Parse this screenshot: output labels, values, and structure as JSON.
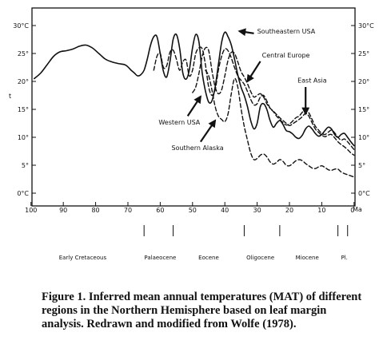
{
  "chart_data": {
    "type": "line",
    "xlim": [
      100,
      0
    ],
    "ylim": [
      0,
      30
    ],
    "x_ticks": [
      100,
      90,
      80,
      70,
      60,
      50,
      40,
      30,
      20,
      10,
      0
    ],
    "x_tick_labels": [
      "100",
      "90",
      "80",
      "70",
      "60",
      "50",
      "40",
      "30",
      "20",
      "10",
      "0"
    ],
    "x_unit": "Ma",
    "y_ticks": [
      0,
      5,
      10,
      15,
      20,
      25,
      30
    ],
    "y_tick_labels_left": [
      "0°C",
      "5°",
      "10°",
      "15°",
      "20°",
      "25°",
      "30°C"
    ],
    "y_tick_labels_right": [
      "0°C",
      "5°",
      "10°",
      "15°",
      "20°",
      "25°",
      "30°C"
    ],
    "ylabel": "t",
    "grid": false,
    "series": [
      {
        "name": "Southeastern USA",
        "style": "solid",
        "x": [
          99,
          97,
          95,
          93,
          91,
          89,
          87,
          85,
          83,
          81,
          79,
          77,
          75,
          73,
          71,
          70,
          69,
          68,
          67,
          66,
          65,
          64,
          63,
          62,
          61,
          60,
          59,
          58,
          57,
          56,
          55,
          54,
          53,
          52,
          51,
          50,
          49,
          48,
          47,
          46,
          45,
          44,
          43,
          42,
          41,
          40,
          39,
          38,
          37,
          36,
          35,
          34,
          33,
          32,
          31,
          30,
          29,
          28,
          27,
          26,
          25,
          24,
          23,
          22,
          21,
          20,
          19,
          18,
          17,
          16,
          15,
          14,
          13,
          12,
          11,
          10,
          9,
          8,
          7,
          6,
          5,
          4,
          3,
          2,
          1,
          0
        ],
        "y": [
          20.5,
          21.5,
          23,
          24.5,
          25.3,
          25.5,
          25.8,
          26.3,
          26.5,
          26,
          25,
          24,
          23.5,
          23.2,
          23,
          22.6,
          22,
          21.5,
          21,
          21.2,
          22,
          24,
          26.5,
          28,
          28,
          25,
          21.8,
          20.8,
          23.5,
          27.5,
          28.4,
          26,
          21.5,
          20.4,
          22,
          26,
          28.4,
          27,
          21.5,
          18.3,
          16.3,
          16.5,
          19,
          23,
          27,
          28.8,
          28,
          26.5,
          24,
          21.2,
          19,
          17.5,
          15.5,
          13,
          11.5,
          12.5,
          15.5,
          16,
          15,
          13,
          11.8,
          12.5,
          13,
          12.3,
          11.2,
          11,
          10.6,
          10,
          9.8,
          10.4,
          11.5,
          12,
          11.5,
          10.7,
          10.2,
          10.5,
          11.2,
          11.8,
          11.5,
          10.5,
          10,
          10.5,
          10.7,
          10,
          9.2,
          8.5
        ]
      },
      {
        "name": "Central Europe",
        "style": "dashed",
        "x": [
          62,
          61,
          60,
          59,
          58,
          57,
          56,
          55,
          54,
          53,
          52,
          51,
          50,
          49,
          48,
          47,
          46,
          45,
          44,
          43,
          42,
          41,
          40,
          39,
          38,
          37,
          36,
          35,
          34,
          33,
          32,
          31,
          30,
          29,
          28,
          27,
          26,
          25,
          24,
          23,
          22,
          21,
          20,
          19,
          18,
          17,
          16,
          15,
          14,
          13,
          12,
          11,
          10,
          9,
          8,
          7,
          6,
          5,
          4,
          3,
          2,
          1,
          0
        ],
        "y": [
          22,
          24.5,
          25,
          22.5,
          22.8,
          25.2,
          25.6,
          24,
          22,
          23.5,
          23.8,
          21,
          22,
          25,
          26,
          25.8,
          23,
          19,
          17.5,
          18.5,
          22,
          24.5,
          25.8,
          25.5,
          24.2,
          22.5,
          21,
          20.2,
          19.5,
          18.2,
          16.8,
          15.8,
          16,
          17.2,
          17.5,
          16.5,
          15.2,
          14.6,
          13.8,
          13.2,
          12.6,
          12.2,
          12.4,
          12.9,
          13.5,
          13.8,
          14.5,
          15,
          14.4,
          13.2,
          12,
          11.3,
          10.7,
          10.5,
          10.9,
          11.3,
          10.8,
          10,
          9.5,
          9.7,
          9.2,
          8.5,
          7.8
        ]
      },
      {
        "name": "Western USA",
        "style": "dashed",
        "x": [
          50,
          49,
          48,
          47,
          46,
          45,
          44,
          43,
          42,
          41,
          40,
          39,
          38,
          37,
          36,
          35,
          34,
          33,
          32,
          31,
          30,
          29,
          28,
          27,
          26,
          25,
          24,
          23,
          22,
          21,
          20,
          19,
          18,
          17,
          16,
          15,
          14,
          13,
          12,
          11,
          10,
          9,
          8,
          7,
          6,
          5,
          4,
          3,
          2,
          1,
          0
        ],
        "y": [
          18,
          19,
          21.5,
          24.5,
          26,
          25.5,
          22,
          19,
          17.8,
          18.5,
          21,
          23.8,
          25.2,
          25,
          23.5,
          21.8,
          20.8,
          19.6,
          18.2,
          17.2,
          17.5,
          17.8,
          17.2,
          16,
          15.2,
          14.7,
          14.1,
          13.5,
          13,
          12.5,
          12.1,
          12.4,
          12.8,
          13.2,
          13.7,
          14.3,
          13.8,
          12.6,
          11.5,
          10.9,
          10.4,
          10.1,
          10.4,
          10.5,
          9.9,
          9.2,
          8.7,
          8.3,
          7.8,
          7.2,
          6.8
        ]
      },
      {
        "name": "Southern Alaska",
        "style": "dashed",
        "x": [
          46,
          45,
          44,
          43,
          42,
          41,
          40,
          39,
          38,
          37,
          36,
          35,
          34,
          33,
          32,
          31,
          30,
          29,
          28,
          27,
          26,
          25,
          24,
          23,
          22,
          21,
          20,
          19,
          18,
          17,
          16,
          15,
          14,
          13,
          12,
          11,
          10,
          9,
          8,
          7,
          6,
          5,
          4,
          3,
          2,
          1,
          0
        ],
        "y": [
          22,
          21,
          18.5,
          15.5,
          13.8,
          13.2,
          12.8,
          14.2,
          17.8,
          20.5,
          19,
          15.2,
          12,
          9.5,
          7.2,
          6,
          6.2,
          6.8,
          7,
          6.5,
          5.6,
          5.2,
          5.5,
          6,
          5.7,
          5,
          4.9,
          5.3,
          5.8,
          6,
          5.8,
          5.3,
          4.9,
          4.5,
          4.4,
          4.7,
          4.9,
          4.6,
          4.2,
          4.1,
          4.3,
          4.3,
          3.8,
          3.5,
          3.3,
          3.1,
          2.9
        ]
      }
    ],
    "annotations": [
      {
        "text": "Southeastern USA",
        "x": 30,
        "y": 28.6
      },
      {
        "text": "Central Europe",
        "x": 28.5,
        "y": 24.3
      },
      {
        "text": "East Asia",
        "x": 17.5,
        "y": 19.8
      },
      {
        "text": "Western USA",
        "x": 60.5,
        "y": 12.3
      },
      {
        "text": "Southern Alaska",
        "x": 56.5,
        "y": 7.7
      }
    ],
    "arrows": [
      {
        "label": "Southeastern USA",
        "from": [
          31,
          28.6
        ],
        "to": [
          35.5,
          29
        ]
      },
      {
        "label": "Central Europe",
        "from": [
          29,
          23.6
        ],
        "to": [
          33,
          20
        ]
      },
      {
        "label": "East Asia",
        "from": [
          15,
          19
        ],
        "to": [
          15,
          14.2
        ]
      },
      {
        "label": "Western USA",
        "from": [
          51.5,
          13.8
        ],
        "to": [
          47.5,
          17.3
        ]
      },
      {
        "label": "Southern Alaska",
        "from": [
          47.5,
          9.2
        ],
        "to": [
          43,
          13
        ]
      }
    ],
    "epochs": [
      {
        "label": "Early Cretaceous",
        "x": 84
      },
      {
        "label": "Palaeocene",
        "x": 60
      },
      {
        "label": "Eocene",
        "x": 45
      },
      {
        "label": "Oligocene",
        "x": 29
      },
      {
        "label": "Miocene",
        "x": 14.5
      },
      {
        "label": "Pl.",
        "x": 3
      }
    ],
    "epoch_boundaries": [
      65,
      56,
      34,
      23,
      5,
      2
    ],
    "caption": "Figure 1.  Inferred mean annual temperatures (MAT) of different regions in the Northern Hemisphere based on leaf margin analysis. Redrawn and modified from Wolfe (1978)."
  }
}
